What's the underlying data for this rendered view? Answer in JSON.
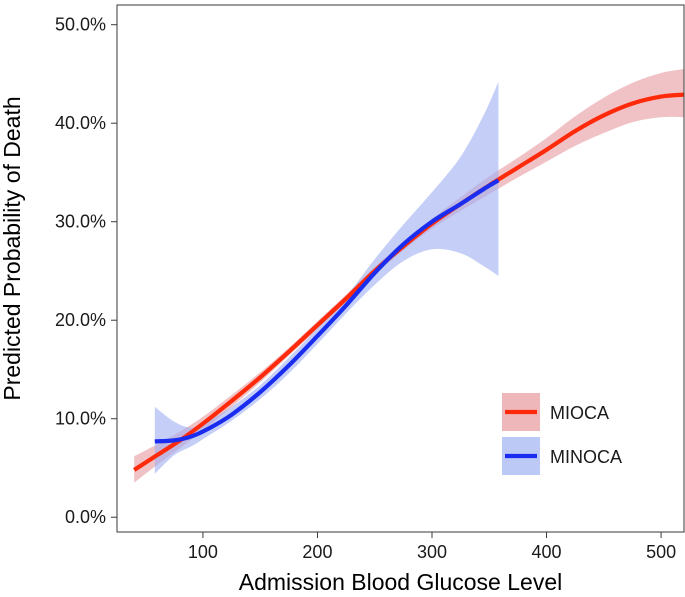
{
  "chart_data": {
    "type": "line",
    "title": "",
    "xlabel": "Admission Blood Glucose Level",
    "ylabel": "Predicted Probability of Death",
    "xlim": [
      25,
      520
    ],
    "ylim": [
      -0.015,
      0.52
    ],
    "xticks": [
      100,
      200,
      300,
      400,
      500
    ],
    "xtick_labels": [
      "100",
      "200",
      "300",
      "400",
      "500"
    ],
    "yticks": [
      0.0,
      0.1,
      0.2,
      0.3,
      0.4,
      0.5
    ],
    "ytick_labels": [
      "0.0%",
      "10.0%",
      "20.0%",
      "30.0%",
      "40.0%",
      "50.0%"
    ],
    "grid": false,
    "legend_position": "bottom-right",
    "series": [
      {
        "name": "MIOCA",
        "color": "#ff2a0a",
        "band_color": "#e79a9e",
        "x": [
          40,
          60,
          80,
          100,
          125,
          150,
          175,
          200,
          225,
          250,
          275,
          300,
          325,
          350,
          375,
          400,
          425,
          450,
          475,
          500,
          520
        ],
        "y": [
          0.048,
          0.063,
          0.078,
          0.095,
          0.118,
          0.142,
          0.168,
          0.195,
          0.222,
          0.25,
          0.275,
          0.298,
          0.318,
          0.337,
          0.355,
          0.373,
          0.392,
          0.408,
          0.42,
          0.427,
          0.429
        ],
        "lower": [
          0.035,
          0.053,
          0.07,
          0.088,
          0.112,
          0.137,
          0.164,
          0.191,
          0.218,
          0.246,
          0.271,
          0.293,
          0.311,
          0.328,
          0.345,
          0.361,
          0.377,
          0.39,
          0.401,
          0.406,
          0.406
        ],
        "upper": [
          0.062,
          0.074,
          0.087,
          0.102,
          0.124,
          0.147,
          0.172,
          0.199,
          0.226,
          0.254,
          0.279,
          0.303,
          0.325,
          0.346,
          0.365,
          0.385,
          0.407,
          0.426,
          0.441,
          0.451,
          0.455
        ]
      },
      {
        "name": "MINOCA",
        "color": "#1a2cf0",
        "band_color": "#9fb0f2",
        "x": [
          58,
          75,
          90,
          105,
          125,
          150,
          175,
          200,
          225,
          250,
          275,
          300,
          325,
          345,
          358
        ],
        "y": [
          0.077,
          0.078,
          0.082,
          0.09,
          0.104,
          0.127,
          0.154,
          0.184,
          0.215,
          0.248,
          0.277,
          0.3,
          0.318,
          0.333,
          0.342
        ],
        "lower": [
          0.044,
          0.063,
          0.072,
          0.083,
          0.098,
          0.12,
          0.146,
          0.176,
          0.207,
          0.236,
          0.26,
          0.272,
          0.268,
          0.255,
          0.245
        ],
        "upper": [
          0.112,
          0.097,
          0.091,
          0.098,
          0.112,
          0.134,
          0.162,
          0.192,
          0.224,
          0.262,
          0.297,
          0.33,
          0.366,
          0.408,
          0.442
        ]
      }
    ]
  }
}
